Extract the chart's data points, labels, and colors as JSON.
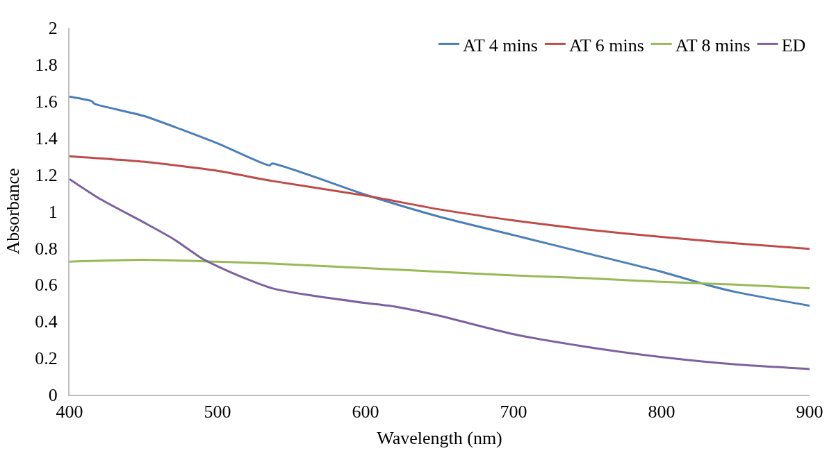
{
  "chart_data": {
    "type": "line",
    "xlabel": "Wavelength (nm)",
    "ylabel": "Absorbance",
    "xlim": [
      400,
      900
    ],
    "xticks": [
      400,
      500,
      600,
      700,
      800,
      900
    ],
    "ylim": [
      0,
      2
    ],
    "yticks": [
      0,
      0.2,
      0.4,
      0.6,
      0.8,
      1,
      1.2,
      1.4,
      1.6,
      1.8,
      2
    ],
    "grid": false,
    "legend": "top right",
    "marker": "none",
    "line_style": "solid",
    "series": [
      {
        "name": "AT 4 mins",
        "color": "#4a7ebb",
        "x": [
          400,
          410,
          415,
          417,
          450,
          500,
          535,
          537,
          600,
          650,
          700,
          750,
          800,
          830,
          850,
          900
        ],
        "values": [
          1.625,
          1.61,
          1.6,
          1.585,
          1.52,
          1.37,
          1.25,
          1.26,
          1.09,
          0.97,
          0.87,
          0.77,
          0.67,
          0.6,
          0.56,
          0.485
        ]
      },
      {
        "name": "AT 6 mins",
        "color": "#be4b48",
        "x": [
          400,
          450,
          500,
          537,
          600,
          650,
          700,
          750,
          800,
          850,
          900
        ],
        "values": [
          1.3,
          1.27,
          1.22,
          1.165,
          1.085,
          1.01,
          0.95,
          0.9,
          0.86,
          0.825,
          0.795
        ]
      },
      {
        "name": "AT 8 mins",
        "color": "#98b954",
        "x": [
          400,
          450,
          500,
          537,
          600,
          650,
          700,
          750,
          800,
          850,
          900
        ],
        "values": [
          0.725,
          0.735,
          0.725,
          0.715,
          0.69,
          0.67,
          0.65,
          0.635,
          0.615,
          0.6,
          0.58
        ]
      },
      {
        "name": "ED",
        "color": "#7d60a0",
        "x": [
          400,
          420,
          450,
          470,
          490,
          500,
          520,
          537,
          560,
          600,
          620,
          650,
          700,
          750,
          800,
          850,
          900
        ],
        "values": [
          1.175,
          1.07,
          0.94,
          0.85,
          0.74,
          0.7,
          0.63,
          0.58,
          0.545,
          0.5,
          0.48,
          0.43,
          0.33,
          0.26,
          0.205,
          0.165,
          0.14
        ]
      }
    ]
  }
}
